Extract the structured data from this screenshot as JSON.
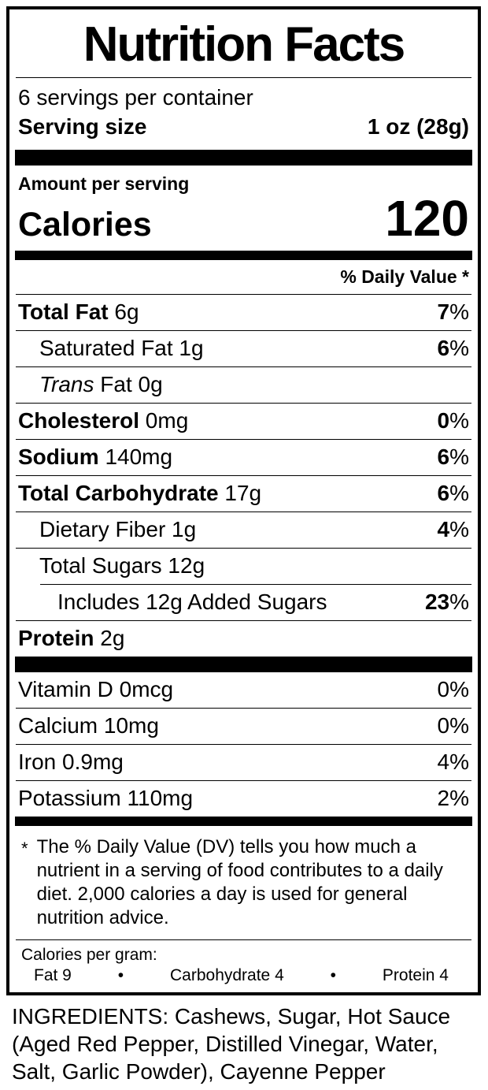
{
  "label": {
    "title": "Nutrition Facts",
    "servings_per_container": "6 servings per container",
    "serving_size_label": "Serving size",
    "serving_size_value": "1 oz (28g)",
    "amount_per_serving": "Amount per serving",
    "calories_label": "Calories",
    "calories_value": "120",
    "daily_value_header": "% Daily Value *",
    "nutrients": [
      {
        "bold": "Total Fat",
        "italic": "",
        "text": " 6g",
        "dv": "7",
        "pct": "%"
      },
      {
        "bold": "",
        "italic": "",
        "text": "Saturated Fat 1g",
        "dv": "6",
        "pct": "%"
      },
      {
        "bold": "",
        "italic": "Trans",
        "text": " Fat 0g",
        "dv": "",
        "pct": ""
      },
      {
        "bold": "Cholesterol",
        "italic": "",
        "text": " 0mg",
        "dv": "0",
        "pct": "%"
      },
      {
        "bold": "Sodium",
        "italic": "",
        "text": " 140mg",
        "dv": "6",
        "pct": "%"
      },
      {
        "bold": "Total Carbohydrate",
        "italic": "",
        "text": " 17g",
        "dv": "6",
        "pct": "%"
      },
      {
        "bold": "",
        "italic": "",
        "text": "Dietary Fiber 1g",
        "dv": "4",
        "pct": "%"
      },
      {
        "bold": "",
        "italic": "",
        "text": "Total Sugars 12g",
        "dv": "",
        "pct": ""
      },
      {
        "bold": "",
        "italic": "",
        "text": "Includes 12g Added Sugars",
        "dv": "23",
        "pct": "%"
      },
      {
        "bold": "Protein",
        "italic": "",
        "text": " 2g",
        "dv": "",
        "pct": ""
      }
    ],
    "vitamins": [
      {
        "text": "Vitamin D 0mcg",
        "dv": "0%"
      },
      {
        "text": "Calcium 10mg",
        "dv": "0%"
      },
      {
        "text": "Iron 0.9mg",
        "dv": "4%"
      },
      {
        "text": "Potassium 110mg",
        "dv": "2%"
      }
    ],
    "footnote_asterisk": "*",
    "footnote": "The % Daily Value (DV) tells you how much a nutrient in a serving of food contributes to a daily diet. 2,000 calories a day is used for general nutrition advice.",
    "calories_per_gram": {
      "label": "Calories per gram:",
      "bullet": "•",
      "items": [
        "Fat 9",
        "Carbohydrate 4",
        "Protein 4"
      ]
    }
  },
  "ingredients": "INGREDIENTS: Cashews, Sugar, Hot Sauce (Aged Red Pepper, Distilled Vinegar, Water, Salt, Garlic Powder), Cayenne Pepper",
  "colors": {
    "text": "#000000",
    "background": "#ffffff"
  }
}
